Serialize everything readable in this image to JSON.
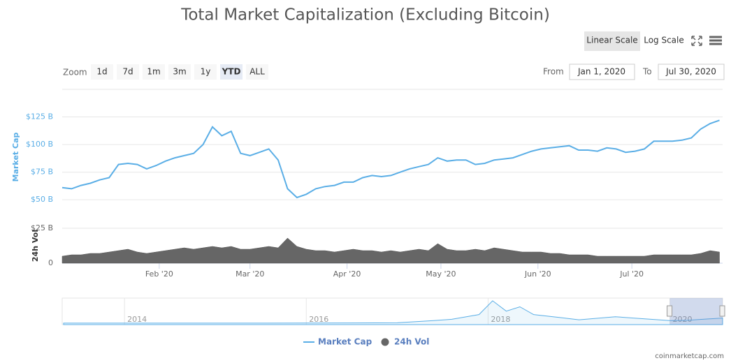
{
  "chart_data": {
    "type": "line",
    "title": "Total Market Capitalization (Excluding Bitcoin)",
    "log_scale": false,
    "scale_buttons": [
      "Linear Scale",
      "Log Scale"
    ],
    "zoom": {
      "label": "Zoom",
      "buttons": [
        "1d",
        "7d",
        "1m",
        "3m",
        "1y",
        "YTD",
        "ALL"
      ],
      "active": 5
    },
    "range": {
      "from_label": "From",
      "from": "Jan 1, 2020",
      "to_label": "To",
      "to": "Jul 30, 2020"
    },
    "x": [
      0,
      3,
      6,
      9,
      12,
      15,
      18,
      21,
      24,
      27,
      30,
      33,
      36,
      39,
      42,
      45,
      48,
      51,
      54,
      57,
      60,
      63,
      66,
      69,
      72,
      75,
      78,
      81,
      84,
      87,
      90,
      93,
      96,
      99,
      102,
      105,
      108,
      111,
      114,
      117,
      120,
      123,
      126,
      129,
      132,
      135,
      138,
      141,
      144,
      147,
      150,
      153,
      156,
      159,
      162,
      165,
      168,
      171,
      174,
      177,
      180,
      183,
      186,
      189,
      192,
      195,
      198,
      201,
      204,
      207,
      210
    ],
    "xlim": [
      0,
      211
    ],
    "xticks": [
      {
        "value": 31,
        "label": "Feb '20"
      },
      {
        "value": 60,
        "label": "Mar '20"
      },
      {
        "value": 91,
        "label": "Apr '20"
      },
      {
        "value": 121,
        "label": "May '20"
      },
      {
        "value": 152,
        "label": "Jun '20"
      },
      {
        "value": 182,
        "label": "Jul '20"
      }
    ],
    "ylabel": "Market Cap",
    "ylim": [
      40,
      150
    ],
    "yticks": [
      {
        "value": 50,
        "label": "$50 B"
      },
      {
        "value": 75,
        "label": "$75 B"
      },
      {
        "value": 100,
        "label": "$100 B"
      },
      {
        "value": 125,
        "label": "$125 B"
      }
    ],
    "y2label": "24h Vol",
    "y2lim": [
      0,
      25
    ],
    "y2ticks": [
      0,
      {
        "value": 25,
        "label": "$25 B"
      }
    ],
    "series": [
      {
        "name": "Market Cap",
        "color": "#5aaee6",
        "values": [
          61,
          60,
          63,
          65,
          68,
          70,
          82,
          83,
          82,
          78,
          81,
          85,
          88,
          90,
          92,
          100,
          116,
          108,
          112,
          92,
          90,
          93,
          96,
          86,
          60,
          52,
          55,
          60,
          62,
          63,
          66,
          66,
          70,
          72,
          71,
          72,
          75,
          78,
          80,
          82,
          88,
          85,
          86,
          86,
          82,
          83,
          86,
          87,
          88,
          91,
          94,
          96,
          97,
          98,
          99,
          95,
          95,
          94,
          97,
          96,
          93,
          94,
          96,
          103,
          103,
          103,
          104,
          106,
          114,
          119,
          122
        ]
      },
      {
        "name": "24h Vol",
        "color": "#666666",
        "axis": "y2",
        "values": [
          5,
          6,
          6,
          7,
          7,
          8,
          9,
          10,
          8,
          7,
          8,
          9,
          10,
          11,
          10,
          11,
          12,
          11,
          12,
          10,
          10,
          11,
          12,
          11,
          18,
          12,
          10,
          9,
          9,
          8,
          9,
          10,
          9,
          9,
          8,
          9,
          8,
          9,
          10,
          9,
          14,
          10,
          9,
          9,
          10,
          9,
          11,
          10,
          9,
          8,
          8,
          8,
          7,
          7,
          6,
          6,
          6,
          5,
          5,
          5,
          5,
          5,
          5,
          6,
          6,
          6,
          6,
          6,
          7,
          9,
          8
        ]
      }
    ],
    "legend": "bottom",
    "navigator": {
      "x": [
        2013.33,
        2014,
        2015,
        2016,
        2017,
        2017.4,
        2017.6,
        2017.9,
        2018.05,
        2018.2,
        2018.35,
        2018.5,
        2018.8,
        2019,
        2019.4,
        2019.6,
        2020,
        2020.2,
        2020.58
      ],
      "values": [
        1,
        2,
        2,
        3,
        10,
        60,
        90,
        200,
        520,
        280,
        380,
        200,
        130,
        80,
        150,
        120,
        60,
        70,
        120
      ],
      "xlim": [
        2013.33,
        2020.58
      ],
      "ylim": [
        0,
        550
      ],
      "xticks": [
        2014,
        2016,
        2018,
        2020
      ],
      "selected": [
        2020,
        2020.58
      ]
    },
    "credits": "coinmarketcap.com"
  }
}
